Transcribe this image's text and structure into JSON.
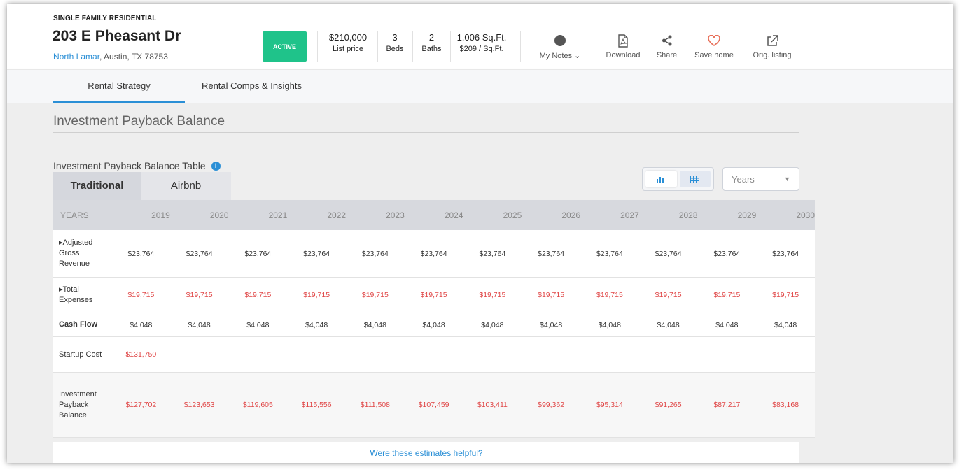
{
  "header": {
    "property_type": "SINGLE FAMILY RESIDENTIAL",
    "address": "203 E Pheasant Dr",
    "neighborhood": "North Lamar",
    "city_state_zip": " Austin, TX 78753",
    "status": "ACTIVE",
    "stats": [
      {
        "value": "$210,000",
        "label": "List price"
      },
      {
        "value": "3",
        "label": "Beds"
      },
      {
        "value": "2",
        "label": "Baths"
      },
      {
        "value": "1,006 Sq.Ft.",
        "label": "$209 / Sq.Ft."
      }
    ],
    "actions": {
      "notes": "My Notes",
      "download": "Download",
      "share": "Share",
      "save": "Save home",
      "orig": "Orig. listing"
    }
  },
  "tabs": [
    "Rental Strategy",
    "Rental Comps & Insights"
  ],
  "section_title": "Investment Payback Balance",
  "table_title": "Investment Payback Balance Table",
  "subtabs": [
    "Traditional",
    "Airbnb"
  ],
  "period_select": "Years",
  "table": {
    "header_label": "YEARS",
    "years": [
      "2019",
      "2020",
      "2021",
      "2022",
      "2023",
      "2024",
      "2025",
      "2026",
      "2027",
      "2028",
      "2029",
      "2030"
    ],
    "rows": [
      {
        "label": "▸Adjusted Gross Revenue",
        "color": "dark",
        "values": [
          "$23,764",
          "$23,764",
          "$23,764",
          "$23,764",
          "$23,764",
          "$23,764",
          "$23,764",
          "$23,764",
          "$23,764",
          "$23,764",
          "$23,764",
          "$23,764"
        ]
      },
      {
        "label": "▸Total Expenses",
        "color": "red",
        "values": [
          "$19,715",
          "$19,715",
          "$19,715",
          "$19,715",
          "$19,715",
          "$19,715",
          "$19,715",
          "$19,715",
          "$19,715",
          "$19,715",
          "$19,715",
          "$19,715"
        ]
      },
      {
        "label": "Cash Flow",
        "color": "dark",
        "values": [
          "$4,048",
          "$4,048",
          "$4,048",
          "$4,048",
          "$4,048",
          "$4,048",
          "$4,048",
          "$4,048",
          "$4,048",
          "$4,048",
          "$4,048",
          "$4,048"
        ]
      },
      {
        "label": "Startup Cost",
        "color": "red",
        "values": [
          "$131,750",
          "",
          "",
          "",
          "",
          "",
          "",
          "",
          "",
          "",
          "",
          ""
        ]
      },
      {
        "label": "Investment Payback Balance",
        "color": "red",
        "values": [
          "$127,702",
          "$123,653",
          "$119,605",
          "$115,556",
          "$111,508",
          "$107,459",
          "$103,411",
          "$99,362",
          "$95,314",
          "$91,265",
          "$87,217",
          "$83,168"
        ]
      }
    ]
  },
  "footer": "Were these estimates helpful?"
}
